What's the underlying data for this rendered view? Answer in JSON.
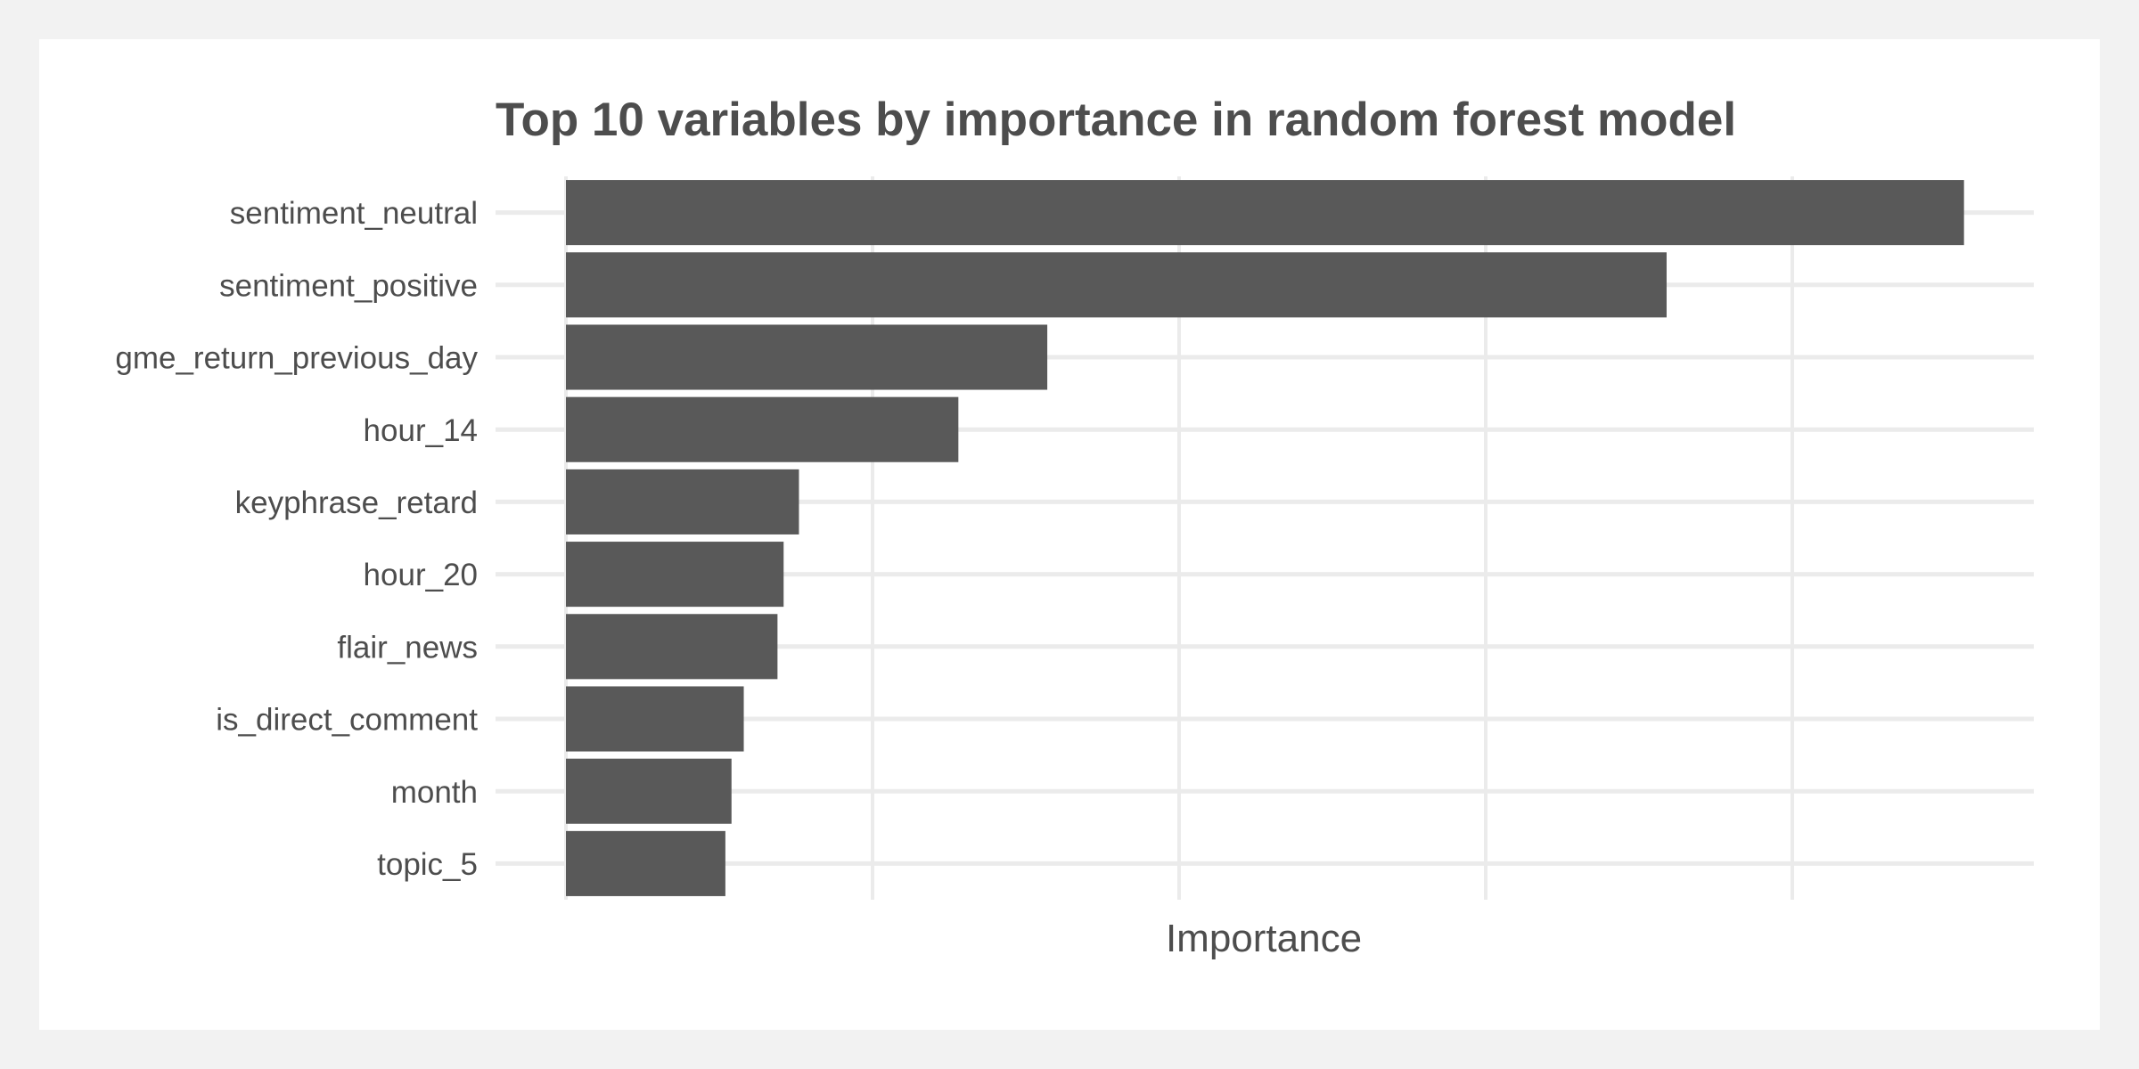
{
  "chart_data": {
    "type": "bar",
    "orientation": "horizontal",
    "title": "Top 10 variables by importance in random forest model",
    "xlabel": "Importance",
    "ylabel": "",
    "categories": [
      "sentiment_neutral",
      "sentiment_positive",
      "gme_return_previous_day",
      "hour_14",
      "keyphrase_retard",
      "hour_20",
      "flair_news",
      "is_direct_comment",
      "month",
      "topic_5"
    ],
    "values": [
      4.56,
      3.59,
      1.57,
      1.28,
      0.76,
      0.71,
      0.69,
      0.58,
      0.54,
      0.52
    ],
    "xlim": [
      0,
      4.79
    ],
    "x_gridlines": [
      0,
      1,
      2,
      3,
      4
    ],
    "x_tick_labels_shown": false,
    "grid": true,
    "bar_color": "#595959",
    "grid_color": "#ebebeb",
    "text_color": "#4d4d4d"
  }
}
